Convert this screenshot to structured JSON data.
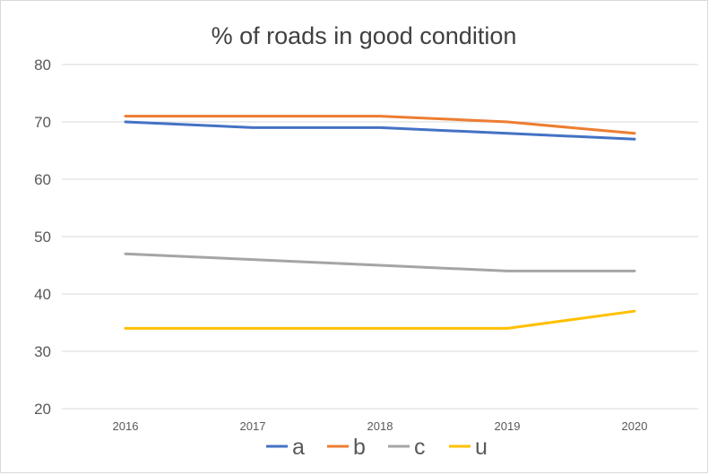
{
  "chart_data": {
    "type": "line",
    "title": "% of roads in good condition",
    "xlabel": "",
    "ylabel": "",
    "categories": [
      "2016",
      "2017",
      "2018",
      "2019",
      "2020"
    ],
    "ylim": [
      20,
      80
    ],
    "yticks": [
      20,
      30,
      40,
      50,
      60,
      70,
      80
    ],
    "grid": true,
    "legend_position": "bottom",
    "series": [
      {
        "name": "a",
        "color": "#4472c4",
        "values": [
          70,
          69,
          69,
          68,
          67
        ]
      },
      {
        "name": "b",
        "color": "#ed7d31",
        "values": [
          71,
          71,
          71,
          70,
          68
        ]
      },
      {
        "name": "c",
        "color": "#a5a5a5",
        "values": [
          47,
          46,
          45,
          44,
          44
        ]
      },
      {
        "name": "u",
        "color": "#ffc000",
        "values": [
          34,
          34,
          34,
          34,
          37
        ]
      }
    ]
  }
}
